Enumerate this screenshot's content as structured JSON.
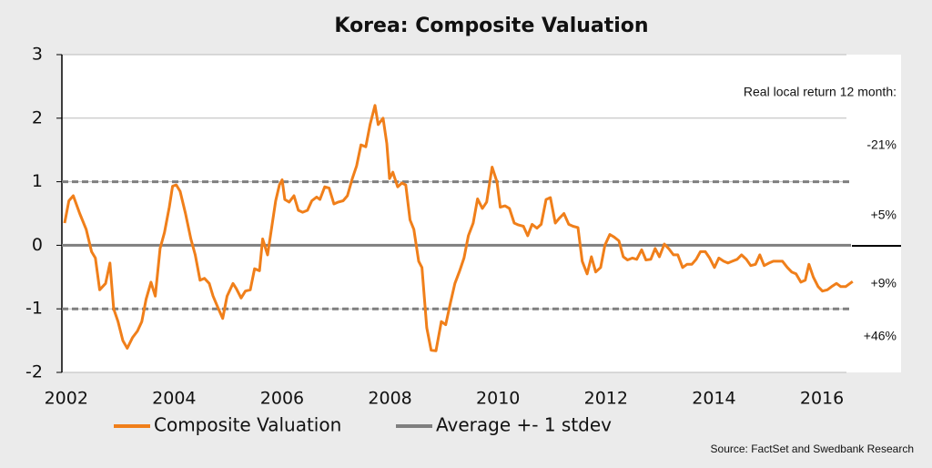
{
  "chart_data": {
    "type": "line",
    "title": "Korea: Composite Valuation",
    "xlim": [
      2001.92,
      2017.5
    ],
    "xticks": [
      2002,
      2004,
      2006,
      2008,
      2010,
      2012,
      2014,
      2016
    ],
    "ylim": [
      -2,
      3
    ],
    "yticks": [
      -2,
      -1,
      0,
      1,
      2,
      3
    ],
    "grid": true,
    "series": [
      {
        "name": "Composite Valuation",
        "color": "#f07f1a",
        "x": [
          2001.97,
          2002.05,
          2002.13,
          2002.25,
          2002.37,
          2002.47,
          2002.54,
          2002.62,
          2002.73,
          2002.81,
          2002.88,
          2002.96,
          2003.05,
          2003.13,
          2003.23,
          2003.32,
          2003.4,
          2003.48,
          2003.57,
          2003.65,
          2003.74,
          2003.82,
          2003.91,
          2003.97,
          2004.04,
          2004.11,
          2004.21,
          2004.31,
          2004.39,
          2004.48,
          2004.56,
          2004.65,
          2004.72,
          2004.82,
          2004.9,
          2004.98,
          2005.09,
          2005.15,
          2005.24,
          2005.32,
          2005.41,
          2005.49,
          2005.58,
          2005.64,
          2005.73,
          2005.81,
          2005.88,
          2005.95,
          2006.0,
          2006.05,
          2006.13,
          2006.22,
          2006.3,
          2006.38,
          2006.47,
          2006.55,
          2006.64,
          2006.7,
          2006.79,
          2006.87,
          2006.96,
          2007.04,
          2007.13,
          2007.21,
          2007.3,
          2007.38,
          2007.46,
          2007.55,
          2007.63,
          2007.72,
          2007.78,
          2007.87,
          2007.94,
          2007.99,
          2008.05,
          2008.14,
          2008.22,
          2008.29,
          2008.37,
          2008.44,
          2008.53,
          2008.59,
          2008.68,
          2008.76,
          2008.85,
          2008.95,
          2009.03,
          2009.12,
          2009.2,
          2009.29,
          2009.37,
          2009.45,
          2009.54,
          2009.62,
          2009.71,
          2009.79,
          2009.89,
          2009.98,
          2010.04,
          2010.13,
          2010.21,
          2010.3,
          2010.38,
          2010.47,
          2010.55,
          2010.63,
          2010.72,
          2010.8,
          2010.89,
          2010.97,
          2011.06,
          2011.14,
          2011.22,
          2011.31,
          2011.39,
          2011.48,
          2011.56,
          2011.65,
          2011.73,
          2011.81,
          2011.9,
          2011.98,
          2012.07,
          2012.15,
          2012.24,
          2012.32,
          2012.4,
          2012.49,
          2012.57,
          2012.66,
          2012.74,
          2012.83,
          2012.91,
          2012.99,
          2013.08,
          2013.16,
          2013.25,
          2013.33,
          2013.42,
          2013.5,
          2013.59,
          2013.67,
          2013.75,
          2013.84,
          2013.92,
          2014.01,
          2014.09,
          2014.18,
          2014.26,
          2014.34,
          2014.43,
          2014.51,
          2014.6,
          2014.68,
          2014.77,
          2014.85,
          2014.93,
          2015.02,
          2015.1,
          2015.19,
          2015.27,
          2015.36,
          2015.44,
          2015.52,
          2015.61,
          2015.69,
          2015.76,
          2015.84,
          2015.93,
          2016.01,
          2016.1,
          2016.18,
          2016.27,
          2016.35,
          2016.44,
          2016.52,
          2016.57
        ],
        "values": [
          0.35,
          0.7,
          0.78,
          0.5,
          0.25,
          -0.1,
          -0.2,
          -0.7,
          -0.6,
          -0.28,
          -1.0,
          -1.2,
          -1.5,
          -1.62,
          -1.45,
          -1.35,
          -1.2,
          -0.85,
          -0.58,
          -0.8,
          -0.05,
          0.2,
          0.6,
          0.93,
          0.95,
          0.85,
          0.5,
          0.1,
          -0.15,
          -0.55,
          -0.52,
          -0.6,
          -0.8,
          -1.0,
          -1.15,
          -0.8,
          -0.6,
          -0.68,
          -0.83,
          -0.72,
          -0.7,
          -0.37,
          -0.4,
          0.1,
          -0.15,
          0.3,
          0.7,
          0.95,
          1.03,
          0.72,
          0.68,
          0.78,
          0.55,
          0.52,
          0.55,
          0.7,
          0.76,
          0.72,
          0.92,
          0.9,
          0.65,
          0.68,
          0.7,
          0.78,
          1.05,
          1.25,
          1.58,
          1.55,
          1.9,
          2.2,
          1.9,
          2.0,
          1.6,
          1.05,
          1.15,
          0.92,
          0.98,
          0.95,
          0.4,
          0.25,
          -0.25,
          -0.35,
          -1.3,
          -1.65,
          -1.66,
          -1.2,
          -1.25,
          -0.9,
          -0.6,
          -0.4,
          -0.2,
          0.15,
          0.35,
          0.73,
          0.58,
          0.68,
          1.23,
          1.0,
          0.6,
          0.62,
          0.58,
          0.35,
          0.32,
          0.3,
          0.15,
          0.33,
          0.27,
          0.33,
          0.72,
          0.75,
          0.35,
          0.43,
          0.5,
          0.33,
          0.3,
          0.28,
          -0.25,
          -0.45,
          -0.18,
          -0.42,
          -0.35,
          0.0,
          0.17,
          0.13,
          0.07,
          -0.18,
          -0.23,
          -0.2,
          -0.22,
          -0.07,
          -0.23,
          -0.22,
          -0.05,
          -0.18,
          0.02,
          -0.05,
          -0.15,
          -0.15,
          -0.35,
          -0.3,
          -0.3,
          -0.22,
          -0.1,
          -0.1,
          -0.2,
          -0.35,
          -0.2,
          -0.25,
          -0.28,
          -0.25,
          -0.22,
          -0.15,
          -0.22,
          -0.32,
          -0.3,
          -0.15,
          -0.32,
          -0.28,
          -0.25,
          -0.25,
          -0.25,
          -0.35,
          -0.42,
          -0.45,
          -0.58,
          -0.55,
          -0.3,
          -0.5,
          -0.65,
          -0.72,
          -0.7,
          -0.65,
          -0.6,
          -0.65,
          -0.65,
          -0.6,
          -0.57
        ]
      },
      {
        "name": "Average +- 1 stdev",
        "color": "#7f7f7f",
        "levels": [
          -1,
          0,
          1
        ],
        "dashed": [
          true,
          false,
          true
        ]
      }
    ],
    "annotations": [
      "Real local return 12 month:",
      "-21%",
      "+5%",
      "+9%",
      "+46%"
    ],
    "source": "Source: FactSet and Swedbank Research"
  }
}
